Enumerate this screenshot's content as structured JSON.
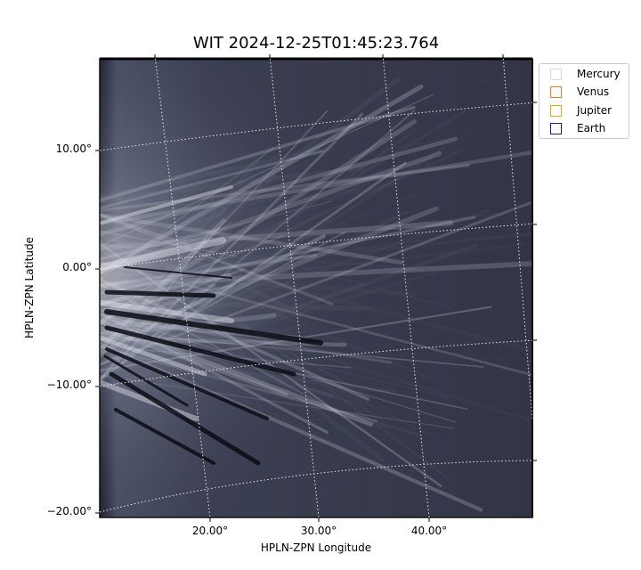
{
  "title": "WIT 2024-12-25T01:45:23.764",
  "axes": {
    "xlabel": "HPLN-ZPN Longitude",
    "ylabel": "HPLN-ZPN Latitude",
    "x_ticks": [
      "20.00°",
      "30.00°",
      "40.00°"
    ],
    "y_ticks": [
      "10.00°",
      "0.00°",
      "−10.00°",
      "−20.00°"
    ]
  },
  "legend": [
    {
      "label": "Mercury",
      "color": "#d9d9d9"
    },
    {
      "label": "Venus",
      "color": "#e07b39"
    },
    {
      "label": "Jupiter",
      "color": "#e6a817"
    },
    {
      "label": "Earth",
      "color": "#1f1f7a"
    }
  ],
  "colors": {
    "background": "#35384a",
    "streamer": "#d8dde6",
    "dark_band": "#0b0c14",
    "grid": "#e0e0e0"
  }
}
